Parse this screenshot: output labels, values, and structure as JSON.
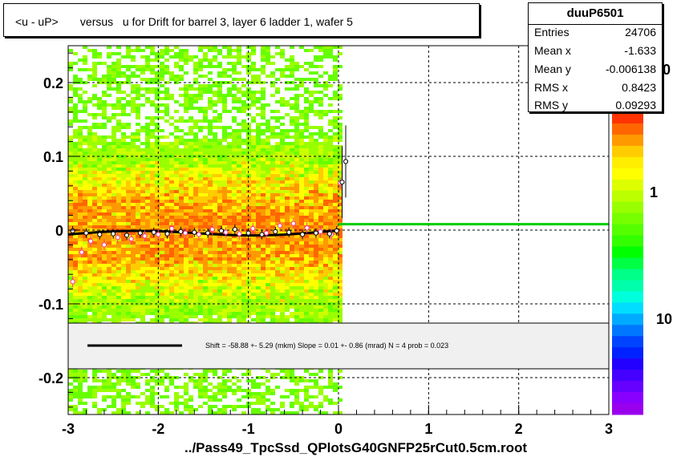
{
  "title": "<u - uP>       versus   u for Drift for barrel 3, layer 6 ladder 1, wafer 5",
  "stats": {
    "name": "duuP6501",
    "rows": [
      {
        "label": "Entries",
        "value": "24706"
      },
      {
        "label": "Mean x",
        "value": "-1.633"
      },
      {
        "label": "Mean y",
        "value": "-0.006138"
      },
      {
        "label": "RMS x",
        "value": "0.8423"
      },
      {
        "label": "RMS y",
        "value": "0.09293"
      }
    ]
  },
  "fit_legend": {
    "text": "Shift =   -58.88 +- 5.29 (mkm) Slope =     0.01 +- 0.86 (mrad)  N = 4 prob = 0.023"
  },
  "x_axis_label": "../Pass49_TpcSsd_QPlotsG40GNFP25rCut0.5cm.root",
  "chart_data": {
    "type": "heatmap",
    "title": "<u - uP>       versus   u for Drift for barrel 3, layer 6 ladder 1, wafer 5",
    "xlim": [
      -3,
      3
    ],
    "ylim": [
      -0.25,
      0.25
    ],
    "x_ticks": [
      "-3",
      "-2",
      "-1",
      "0",
      "1",
      "2",
      "3"
    ],
    "y_ticks": [
      "0.2",
      "0.1",
      "0",
      "-0.1",
      "-0.2"
    ],
    "y_tick_values": [
      0.2,
      0.1,
      0,
      -0.1,
      -0.2
    ],
    "x_tick_values": [
      -3,
      -2,
      -1,
      0,
      1,
      2,
      3
    ],
    "grid": true,
    "log_z": true,
    "colorbar_labels": [
      "1",
      "10"
    ],
    "colorbar_partial_label": "0",
    "occupied_x_range": [
      -3,
      0
    ],
    "fit_line": {
      "x": [
        -3,
        0
      ],
      "y": [
        -0.003,
        0.001
      ],
      "color": "#000000"
    },
    "flat_line": {
      "x": [
        0,
        3
      ],
      "y": [
        0.008,
        0.008
      ],
      "color": "#00cc00"
    },
    "profile_black": {
      "x": [
        -2.95,
        -2.8,
        -2.65,
        -2.5,
        -2.35,
        -2.2,
        -2.05,
        -1.9,
        -1.75,
        -1.6,
        -1.45,
        -1.3,
        -1.15,
        -1.0,
        -0.85,
        -0.7,
        -0.55,
        -0.4,
        -0.25,
        -0.1,
        -0.02,
        0.04,
        0.08
      ],
      "y": [
        -0.001,
        -0.004,
        -0.006,
        -0.005,
        -0.007,
        -0.004,
        -0.003,
        -0.005,
        -0.002,
        -0.003,
        -0.004,
        -0.001,
        0.001,
        -0.004,
        -0.006,
        -0.002,
        -0.003,
        -0.006,
        -0.004,
        -0.005,
        -0.001,
        0.065,
        0.093
      ]
    },
    "profile_pink": {
      "x": [
        -2.95,
        -2.85,
        -2.75,
        -2.6,
        -2.45,
        -2.3,
        -2.15,
        -2.0,
        -1.85,
        -1.7,
        -1.55,
        -1.4,
        -1.25,
        -1.1,
        -0.95,
        -0.8,
        -0.65,
        -0.5,
        -0.35,
        -0.2,
        -0.08,
        0.02
      ],
      "y": [
        -0.07,
        -0.03,
        -0.015,
        -0.02,
        -0.01,
        -0.012,
        -0.008,
        -0.006,
        0.002,
        -0.004,
        -0.006,
        0.001,
        -0.003,
        -0.005,
        0.002,
        -0.004,
        0.006,
        0.009,
        0.003,
        -0.002,
        -0.006,
        0.064
      ]
    }
  }
}
